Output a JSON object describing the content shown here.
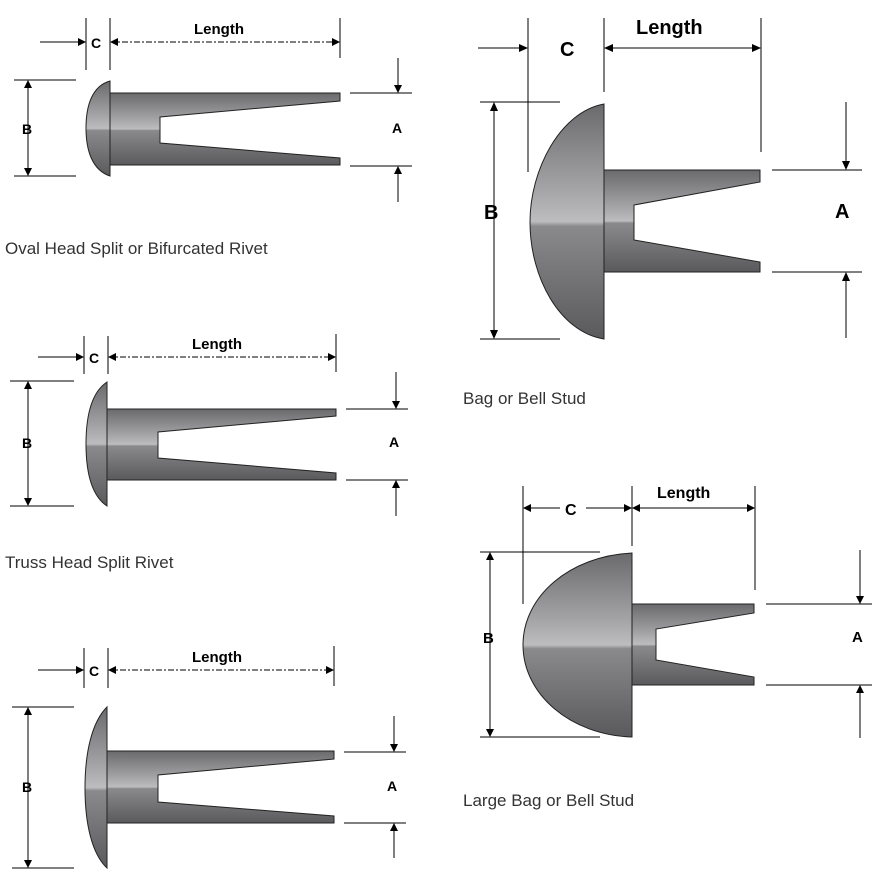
{
  "labels": {
    "length": "Length",
    "c": "C",
    "b": "B",
    "a": "A"
  },
  "captions": {
    "oval_head": "Oval Head Split or Bifurcated Rivet",
    "truss_head": "Truss Head Split Rivet",
    "bag_bell": "Bag or Bell Stud",
    "large_bag_bell": "Large Bag or Bell Stud"
  },
  "colors": {
    "metal_light": "#b9b9bb",
    "metal_mid": "#8e8e90",
    "metal_dark": "#5e5e60",
    "caption_text": "#333333"
  }
}
